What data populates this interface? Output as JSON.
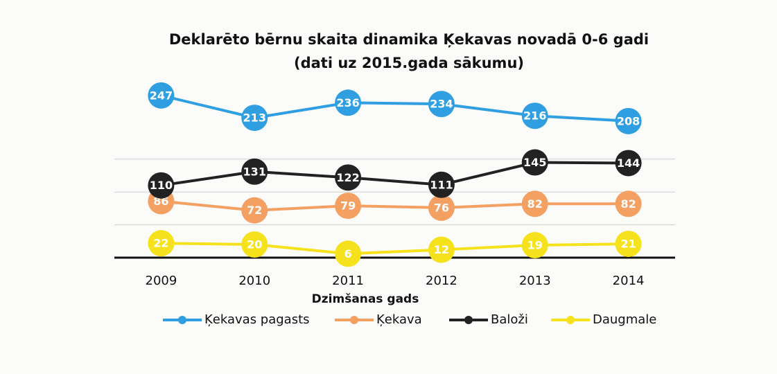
{
  "chart_data": {
    "type": "line",
    "title": "Deklarēto bērnu skaita dinamika Ķekavas novadā 0-6 gadi",
    "subtitle": "(dati uz 2015.gada sākumu)",
    "x_label": "Dzimšanas gads",
    "categories": [
      "2009",
      "2010",
      "2011",
      "2012",
      "2013",
      "2014"
    ],
    "series": [
      {
        "name": "Ķekavas pagasts",
        "color": "#2f9fe2",
        "values": [
          247,
          213,
          236,
          234,
          216,
          208
        ]
      },
      {
        "name": "Ķekava",
        "color": "#f4a062",
        "values": [
          86,
          72,
          79,
          76,
          82,
          82
        ]
      },
      {
        "name": "Baloži",
        "color": "#222222",
        "values": [
          110,
          131,
          122,
          111,
          145,
          144
        ]
      },
      {
        "name": "Daugmale",
        "color": "#f6e21c",
        "values": [
          22,
          20,
          6,
          12,
          19,
          21
        ]
      }
    ],
    "ylim": [
      0,
      250
    ],
    "yticks": [
      0,
      50,
      100,
      150
    ],
    "grid": true
  }
}
